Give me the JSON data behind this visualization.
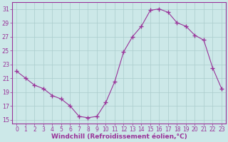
{
  "x": [
    0,
    1,
    2,
    3,
    4,
    5,
    6,
    7,
    8,
    9,
    10,
    11,
    12,
    13,
    14,
    15,
    16,
    17,
    18,
    19,
    20,
    21,
    22,
    23
  ],
  "y": [
    22,
    21,
    20,
    19.5,
    18.5,
    18,
    17,
    15.5,
    15.3,
    15.5,
    17.5,
    20.5,
    24.8,
    27,
    28.5,
    30.8,
    31,
    30.5,
    29,
    28.5,
    27.2,
    26.5,
    22.5,
    19.5
  ],
  "line_color": "#993399",
  "marker": "+",
  "marker_size": 4,
  "bg_color": "#cce8e8",
  "grid_color": "#aacccc",
  "xlabel": "Windchill (Refroidissement éolien,°C)",
  "xlim": [
    -0.5,
    23.5
  ],
  "ylim": [
    14.5,
    32
  ],
  "yticks": [
    15,
    17,
    19,
    21,
    23,
    25,
    27,
    29,
    31
  ],
  "xticks": [
    0,
    1,
    2,
    3,
    4,
    5,
    6,
    7,
    8,
    9,
    10,
    11,
    12,
    13,
    14,
    15,
    16,
    17,
    18,
    19,
    20,
    21,
    22,
    23
  ],
  "axis_color": "#993399",
  "tick_color": "#993399",
  "label_color": "#993399",
  "tick_fontsize": 5.5,
  "xlabel_fontsize": 6.5,
  "linewidth": 0.8,
  "marker_linewidth": 1.0
}
